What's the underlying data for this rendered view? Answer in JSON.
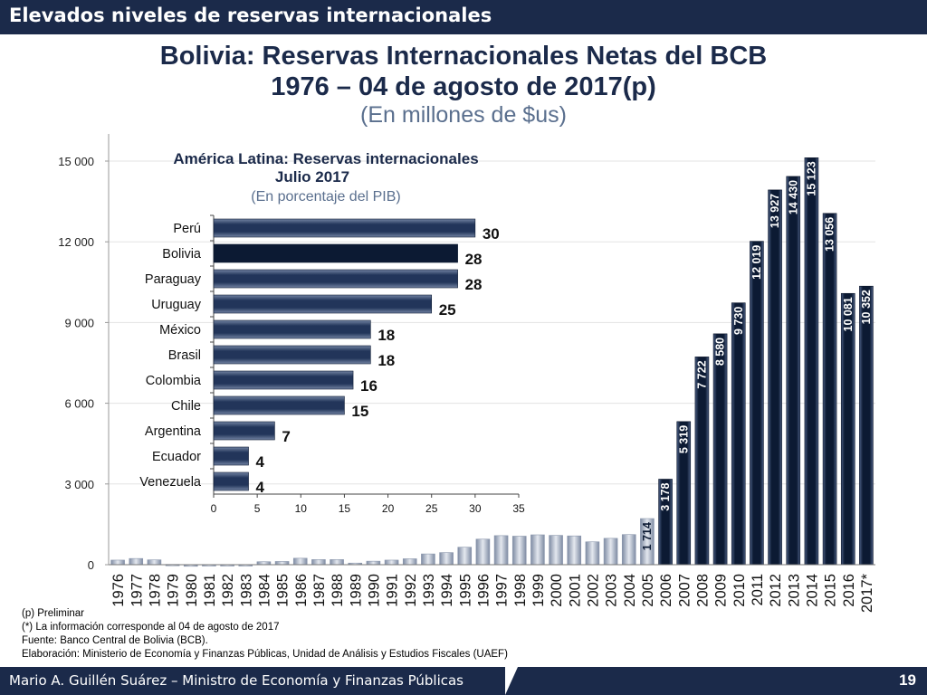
{
  "header": {
    "section_title": "Elevados niveles de reservas internacionales"
  },
  "title": {
    "line1": "Bolivia: Reservas Internacionales Netas del BCB",
    "line2": "1976 – 04 de agosto de 2017(p)",
    "line3": "(En millones de $us)"
  },
  "chart_data": [
    {
      "type": "bar",
      "title": "Bolivia: Reservas Internacionales Netas del BCB",
      "categories": [
        "1976",
        "1977",
        "1978",
        "1979",
        "1980",
        "1981",
        "1982",
        "1983",
        "1984",
        "1985",
        "1986",
        "1987",
        "1988",
        "1989",
        "1990",
        "1991",
        "1992",
        "1993",
        "1994",
        "1995",
        "1996",
        "1997",
        "1998",
        "1999",
        "2000",
        "2001",
        "2002",
        "2003",
        "2004",
        "2005",
        "2006",
        "2007",
        "2008",
        "2009",
        "2010",
        "2011",
        "2012",
        "2013",
        "2014",
        "2015",
        "2016",
        "2017*"
      ],
      "values": [
        170,
        230,
        180,
        10,
        -60,
        -40,
        -30,
        -10,
        110,
        120,
        240,
        190,
        190,
        60,
        130,
        170,
        220,
        400,
        450,
        650,
        950,
        1080,
        1060,
        1110,
        1090,
        1070,
        850,
        980,
        1120,
        1714,
        3178,
        5319,
        7722,
        8580,
        9730,
        12019,
        13927,
        14430,
        15123,
        13056,
        10081,
        10352
      ],
      "value_labels": {
        "2005": "1 714",
        "2006": "3 178",
        "2007": "5 319",
        "2008": "7 722",
        "2009": "8 580",
        "2010": "9 730",
        "2011": "12 019",
        "2012": "13 927",
        "2013": "14 430",
        "2014": "15 123",
        "2015": "13 056",
        "2016": "10 081",
        "2017*": "10 352"
      },
      "ylim": [
        0,
        15000
      ],
      "yticks": [
        0,
        3000,
        6000,
        9000,
        12000,
        15000
      ],
      "ytick_labels": [
        "0",
        "3 000",
        "6 000",
        "9 000",
        "12 000",
        "15 000"
      ],
      "grid": true,
      "colors": {
        "highlight": "#0c1a33",
        "early": "#aab4c6"
      }
    },
    {
      "type": "bar",
      "orientation": "horizontal",
      "title": "América Latina: Reservas internacionales",
      "subtitle": "Julio 2017",
      "note": "(En porcentaje del PIB)",
      "categories": [
        "Perú",
        "Bolivia",
        "Paraguay",
        "Uruguay",
        "México",
        "Brasil",
        "Colombia",
        "Chile",
        "Argentina",
        "Ecuador",
        "Venezuela"
      ],
      "values": [
        30,
        28,
        28,
        25,
        18,
        18,
        16,
        15,
        7,
        4,
        4
      ],
      "value_labels": [
        "30",
        "28",
        "28",
        "25",
        "18",
        "18",
        "16",
        "15",
        "7",
        "4",
        "4"
      ],
      "highlight": "Bolivia",
      "xlim": [
        0,
        35
      ],
      "xticks": [
        0,
        5,
        10,
        15,
        20,
        25,
        30,
        35
      ],
      "colors": {
        "highlight": "#0c1a33",
        "default": "#22355a"
      }
    }
  ],
  "notes": [
    "(p) Preliminar",
    "(*) La información corresponde al 04 de agosto de 2017",
    "Fuente: Banco Central de Bolivia (BCB).",
    "Elaboración: Ministerio de Economía y Finanzas Públicas, Unidad de Análisis y Estudios Fiscales (UAEF)"
  ],
  "footer": {
    "author": "Mario A. Guillén Suárez – Ministro de Economía y Finanzas Públicas",
    "page_number": "19"
  }
}
